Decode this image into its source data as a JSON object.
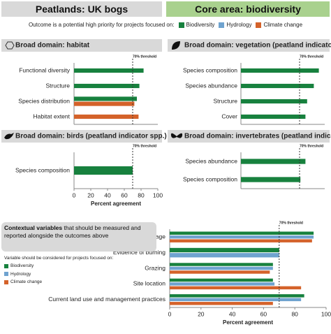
{
  "header": {
    "left": "Peatlands: UK bogs",
    "right": "Core area: biodiversity"
  },
  "legend": {
    "title": "Outcome is a potential high priority for projects focused on:",
    "items": [
      {
        "name": "Biodiversity",
        "color": "#17813e"
      },
      {
        "name": "Hydrology",
        "color": "#6fa3cf"
      },
      {
        "name": "Climate change",
        "color": "#d4622a"
      }
    ]
  },
  "context": {
    "bold": "Contextual variables",
    "text": " that should be measured and reported alongside the outcomes above",
    "legend_title": "Variable should be considered for projects focused on:",
    "items": [
      {
        "name": "Biodiversity",
        "color": "#17813e"
      },
      {
        "name": "Hydrology",
        "color": "#6fa3cf"
      },
      {
        "name": "Climate change",
        "color": "#d4622a"
      }
    ]
  },
  "chart_data": [
    {
      "type": "bar",
      "title": "Broad domain: habitat",
      "categories": [
        "Functional diversity",
        "Structure",
        "Species distribution",
        "Habitat extent"
      ],
      "series": [
        {
          "color": "#17813e",
          "values": [
            83,
            78,
            75,
            null
          ]
        },
        {
          "color": "#d4622a",
          "values": [
            null,
            null,
            72,
            77
          ]
        }
      ],
      "xlim": [
        0,
        100
      ],
      "threshold": 70,
      "threshold_label": "70% threshold"
    },
    {
      "type": "bar",
      "title": "Broad domain: vegetation (peatland indicator spp.)",
      "categories": [
        "Species composition",
        "Species abundance",
        "Structure",
        "Cover"
      ],
      "series": [
        {
          "color": "#17813e",
          "values": [
            93,
            87,
            79,
            77
          ]
        }
      ],
      "xlim": [
        0,
        100
      ],
      "threshold": 70,
      "threshold_label": "70% threshold"
    },
    {
      "type": "bar",
      "title": "Broad domain: birds (peatland indicator spp.)",
      "categories": [
        "Species composition"
      ],
      "series": [
        {
          "color": "#17813e",
          "values": [
            70
          ]
        }
      ],
      "xlim": [
        0,
        100
      ],
      "xticks": [
        0,
        20,
        40,
        60,
        80,
        100
      ],
      "xlabel": "Percent agreement",
      "threshold": 70,
      "threshold_label": "70% threshold"
    },
    {
      "type": "bar",
      "title": "Broad domain: invertebrates (peatland indicator spp.)",
      "categories": [
        "Species abundance",
        "Species composition"
      ],
      "series": [
        {
          "color": "#17813e",
          "values": [
            77,
            71
          ]
        }
      ],
      "xlim": [
        0,
        100
      ],
      "threshold": 70,
      "threshold_label": "70% threshold"
    },
    {
      "type": "bar",
      "categories": [
        "Drainage",
        "Evidence of burning",
        "Grazing",
        "Site location",
        "Current land use and management practices"
      ],
      "series": [
        {
          "color": "#17813e",
          "values": [
            92,
            70,
            66,
            66,
            86
          ]
        },
        {
          "color": "#6fa3cf",
          "values": [
            92,
            70,
            66,
            67,
            84
          ]
        },
        {
          "color": "#d4622a",
          "values": [
            91,
            null,
            64,
            84,
            66
          ]
        }
      ],
      "xlim": [
        0,
        100
      ],
      "xticks": [
        0,
        20,
        40,
        60,
        80,
        100
      ],
      "xlabel": "Percent agreement",
      "threshold": 70,
      "threshold_label": "70% threshold"
    }
  ]
}
